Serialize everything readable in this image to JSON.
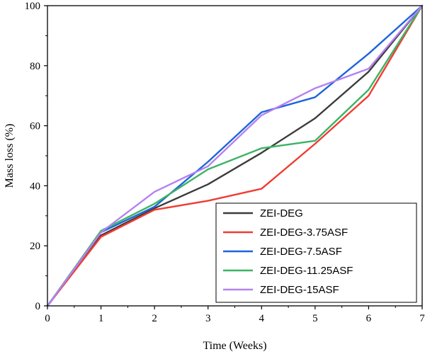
{
  "chart_data": {
    "type": "line",
    "xlabel": "Time (Weeks)",
    "ylabel": "Mass loss (%)",
    "xlim": [
      0,
      7
    ],
    "ylim": [
      0,
      100
    ],
    "x_ticks": [
      "0",
      "1",
      "2",
      "3",
      "4",
      "5",
      "6",
      "7"
    ],
    "y_ticks": [
      "0",
      "20",
      "40",
      "60",
      "80",
      "100"
    ],
    "x": [
      0,
      1,
      2,
      3,
      4,
      5,
      6,
      7
    ],
    "grid": false,
    "legend_position": "bottom-right",
    "series": [
      {
        "name": "ZEI-DEG",
        "color": "#3c3c3c",
        "values": [
          0,
          23.5,
          32.5,
          40.5,
          51,
          62.5,
          78,
          100
        ]
      },
      {
        "name": "ZEI-DEG-3.75ASF",
        "color": "#f03c32",
        "values": [
          0,
          23,
          32,
          35,
          39,
          54,
          70,
          100
        ]
      },
      {
        "name": "ZEI-DEG-7.5ASF",
        "color": "#1e64dc",
        "values": [
          0,
          24.5,
          33,
          48,
          64.5,
          69.5,
          84,
          100
        ]
      },
      {
        "name": "ZEI-DEG-11.25ASF",
        "color": "#3cb464",
        "values": [
          0,
          25,
          34,
          45.5,
          52.5,
          55,
          72,
          100
        ]
      },
      {
        "name": "ZEI-DEG-15ASF",
        "color": "#b482f0",
        "values": [
          0,
          24.5,
          38,
          46.5,
          63.5,
          72.5,
          79,
          100
        ]
      }
    ]
  }
}
